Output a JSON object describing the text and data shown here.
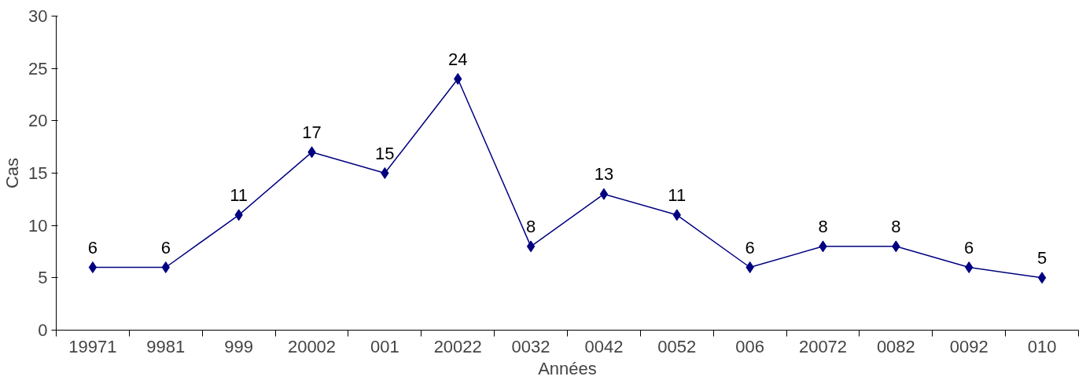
{
  "chart_data": {
    "type": "line",
    "xlabel": "Années",
    "ylabel": "Cas",
    "categories": [
      "19971",
      "9981",
      "999",
      "20002",
      "001",
      "20022",
      "0032",
      "0042",
      "0052",
      "006",
      "20072",
      "0082",
      "0092",
      "010"
    ],
    "series": [
      {
        "color": "#000080",
        "values": [
          6,
          6,
          11,
          17,
          15,
          24,
          8,
          13,
          11,
          6,
          8,
          8,
          6,
          5
        ]
      }
    ],
    "ylim": [
      0,
      30
    ],
    "yticks": [
      0,
      5,
      10,
      15,
      20,
      25,
      30
    ],
    "grid": false,
    "marker": "diamond",
    "line_style": "solid",
    "data_labels": true
  }
}
